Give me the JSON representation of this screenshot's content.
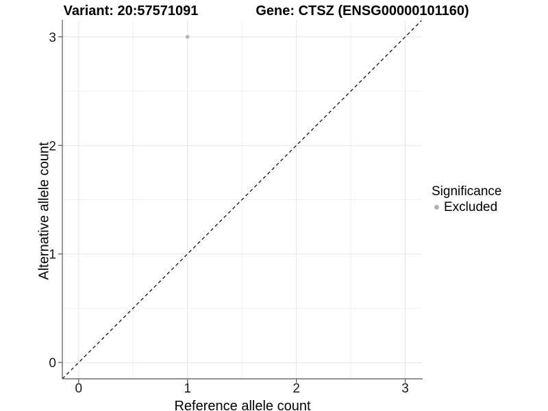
{
  "chart_data": {
    "type": "scatter",
    "titles": {
      "left": "Variant: 20:57571091",
      "right": "Gene: CTSZ (ENSG00000101160)"
    },
    "xlabel": "Reference allele count",
    "ylabel": "Alternative allele count",
    "xlim": [
      -0.15,
      3.16
    ],
    "ylim": [
      -0.15,
      3.15
    ],
    "xticks": [
      0,
      1,
      2,
      3
    ],
    "yticks": [
      0,
      1,
      2,
      3
    ],
    "minor_xticks": [
      0.5,
      1.5,
      2.5
    ],
    "minor_yticks": [
      0.5,
      1.5,
      2.5
    ],
    "grid": "major+minor",
    "series": [
      {
        "name": "Excluded",
        "color": "#b3b3b3",
        "points": [
          {
            "x": 1,
            "y": 3
          }
        ]
      }
    ],
    "reference_line": {
      "kind": "identity y=x",
      "linetype": "dashed",
      "color": "#000000"
    },
    "legend": {
      "title": "Significance",
      "position": "right",
      "entries": [
        {
          "label": "Excluded",
          "color": "#b3b3b3",
          "marker": "circle"
        }
      ]
    }
  },
  "colors": {
    "background": "#ffffff",
    "grid_major": "#e5e5e5",
    "grid_minor": "#f0f0f0",
    "axis_line": "#555555",
    "tick_mark": "#555555",
    "tick_label": "#1a1a1a",
    "title_text": "#000000",
    "point": "#b3b3b3"
  }
}
